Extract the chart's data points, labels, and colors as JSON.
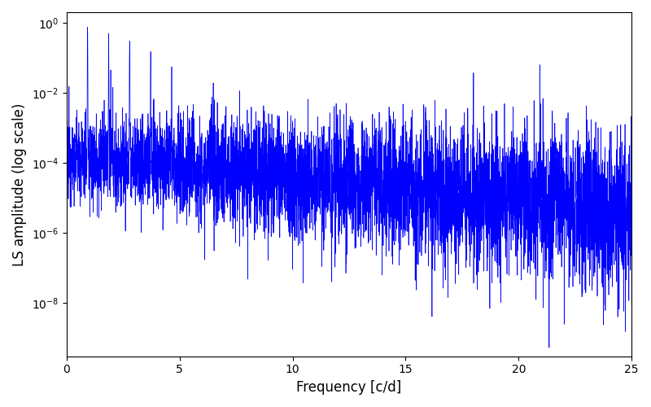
{
  "title": "",
  "xlabel": "Frequency [c/d]",
  "ylabel": "LS amplitude (log scale)",
  "line_color": "#0000ff",
  "line_width": 0.5,
  "xlim": [
    0,
    25
  ],
  "ylim_bottom": 3e-10,
  "ylim_top": 2.0,
  "background_color": "#ffffff",
  "figsize": [
    8.0,
    5.0
  ],
  "dpi": 100,
  "seed": 12345,
  "n_points": 5000,
  "freq_max": 25.0,
  "peak_freqs": [
    0.93,
    1.86,
    2.79,
    3.72,
    4.65,
    5.58
  ],
  "peak_heights": [
    0.75,
    0.5,
    0.3,
    0.15,
    0.055,
    0.003
  ],
  "noise_log_low": -3.8,
  "noise_log_high": -5.4,
  "sigma_low": 1.4,
  "sigma_high": 2.8
}
